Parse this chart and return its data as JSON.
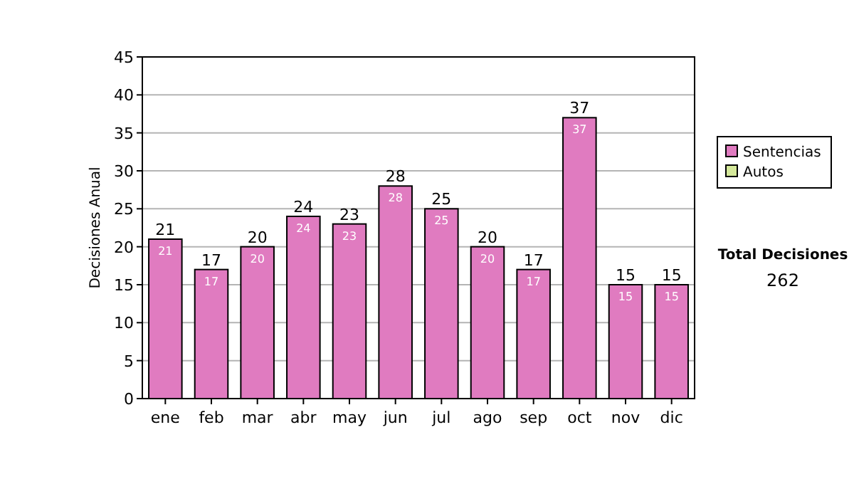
{
  "chart_data": {
    "type": "bar",
    "ylabel": "Decisiones Anual",
    "categories": [
      "ene",
      "feb",
      "mar",
      "abr",
      "may",
      "jun",
      "jul",
      "ago",
      "sep",
      "oct",
      "nov",
      "dic"
    ],
    "series": [
      {
        "name": "Sentencias",
        "color": "#e07bc0",
        "values": [
          21,
          17,
          20,
          24,
          23,
          28,
          25,
          20,
          17,
          37,
          15,
          15
        ],
        "value_labels": [
          "21",
          "17",
          "20",
          "24",
          "23",
          "28",
          "25",
          "20",
          "17",
          "37",
          "15",
          "15"
        ]
      },
      {
        "name": "Autos",
        "color": "#d4e89a",
        "values": [
          null,
          null,
          null,
          null,
          null,
          null,
          null,
          null,
          null,
          null,
          null,
          null
        ]
      }
    ],
    "stacked": true,
    "totals": [
      "21",
      "17",
      "20",
      "24",
      "23",
      "28",
      "25",
      "20",
      "17",
      "37",
      "15",
      "15"
    ],
    "ylim": [
      0,
      45
    ],
    "yticks": [
      0,
      5,
      10,
      15,
      20,
      25,
      30,
      35,
      40,
      45
    ],
    "grid": "y",
    "legend": "right",
    "annotations": [
      "Total Decisiones",
      "262"
    ]
  }
}
